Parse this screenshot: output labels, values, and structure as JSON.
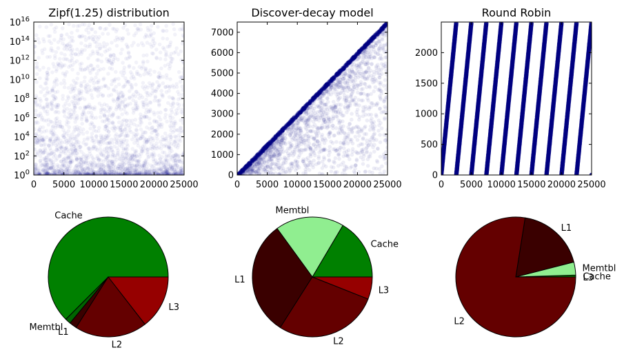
{
  "chart_data": [
    {
      "type": "scatter",
      "title": "Zipf(1.25) distribution",
      "xlim": [
        0,
        25000
      ],
      "ylim": [
        1,
        1e+16
      ],
      "yscale": "log",
      "point_color": "#000080",
      "x_ticks": [
        "0",
        "5000",
        "10000",
        "15000",
        "20000",
        "25000"
      ],
      "y_ticks": [
        {
          "base": "10",
          "exp": "0"
        },
        {
          "base": "10",
          "exp": "2"
        },
        {
          "base": "10",
          "exp": "4"
        },
        {
          "base": "10",
          "exp": "6"
        },
        {
          "base": "10",
          "exp": "8"
        },
        {
          "base": "10",
          "exp": "10"
        },
        {
          "base": "10",
          "exp": "12"
        },
        {
          "base": "10",
          "exp": "14"
        },
        {
          "base": "10",
          "exp": "16"
        }
      ]
    },
    {
      "type": "scatter",
      "title": "Discover-decay model",
      "xlim": [
        0,
        25000
      ],
      "ylim": [
        0,
        7500
      ],
      "point_color": "#000080",
      "x_ticks": [
        "0",
        "5000",
        "10000",
        "15000",
        "20000",
        "25000"
      ],
      "y_ticks": [
        "0",
        "1000",
        "2000",
        "3000",
        "4000",
        "5000",
        "6000",
        "7000"
      ]
    },
    {
      "type": "scatter",
      "title": "Round Robin",
      "xlim": [
        0,
        25000
      ],
      "ylim": [
        0,
        2500
      ],
      "point_color": "#000080",
      "x_ticks": [
        "0",
        "5000",
        "10000",
        "15000",
        "20000",
        "25000"
      ],
      "y_ticks": [
        "0",
        "500",
        "1000",
        "1500",
        "2000"
      ]
    },
    {
      "type": "pie",
      "slices": [
        {
          "label": "Cache",
          "value": 62.5,
          "color": "#008000"
        },
        {
          "label": "Memtbl",
          "value": 1.5,
          "color": "#006400"
        },
        {
          "label": "L1",
          "value": 2.0,
          "color": "#3a0000"
        },
        {
          "label": "L2",
          "value": 19.5,
          "color": "#640000"
        },
        {
          "label": "L3",
          "value": 14.5,
          "color": "#960000"
        }
      ]
    },
    {
      "type": "pie",
      "slices": [
        {
          "label": "Cache",
          "value": 16.5,
          "color": "#008000"
        },
        {
          "label": "Memtbl",
          "value": 18.5,
          "color": "#90ee90"
        },
        {
          "label": "L1",
          "value": 31.0,
          "color": "#3a0000"
        },
        {
          "label": "L2",
          "value": 28.0,
          "color": "#640000"
        },
        {
          "label": "L3",
          "value": 6.0,
          "color": "#960000"
        }
      ]
    },
    {
      "type": "pie",
      "slices": [
        {
          "label": "Cache",
          "value": 0.5,
          "color": "#008000"
        },
        {
          "label": "Memtbl",
          "value": 3.5,
          "color": "#90ee90"
        },
        {
          "label": "L1",
          "value": 18.5,
          "color": "#3a0000"
        },
        {
          "label": "L2",
          "value": 77.5,
          "color": "#640000"
        },
        {
          "label": "L3",
          "value": 0.0,
          "color": "#960000"
        }
      ]
    }
  ]
}
